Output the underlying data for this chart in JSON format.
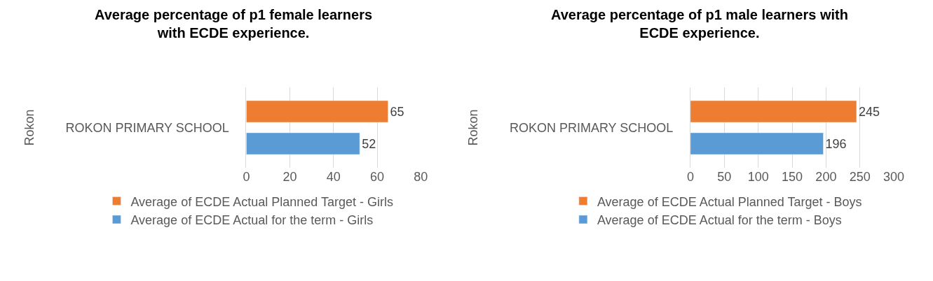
{
  "chart_data": [
    {
      "type": "bar",
      "orientation": "horizontal",
      "title": "Average percentage of p1 female learners with ECDE experience.",
      "ylabel": "Rokon",
      "categories": [
        "ROKON PRIMARY SCHOOL"
      ],
      "series": [
        {
          "name": "Average of ECDE Actual Planned Target - Girls",
          "color": "#ed7d31",
          "values": [
            65
          ]
        },
        {
          "name": "Average of ECDE Actual for the term - Girls",
          "color": "#5b9bd5",
          "values": [
            52
          ]
        }
      ],
      "xlim": [
        0,
        80
      ],
      "xticks": [
        0,
        20,
        40,
        60,
        80
      ],
      "grid": "x",
      "legend": "bottom",
      "data_labels": true
    },
    {
      "type": "bar",
      "orientation": "horizontal",
      "title": "Average percentage of p1 male learners with ECDE experience.",
      "ylabel": "Rokon",
      "categories": [
        "ROKON PRIMARY SCHOOL"
      ],
      "series": [
        {
          "name": "Average of ECDE Actual Planned Target - Boys",
          "color": "#ed7d31",
          "values": [
            245
          ]
        },
        {
          "name": "Average of ECDE Actual for the term - Boys",
          "color": "#5b9bd5",
          "values": [
            196
          ]
        }
      ],
      "xlim": [
        0,
        300
      ],
      "xticks": [
        0,
        50,
        100,
        150,
        200,
        250,
        300
      ],
      "grid": "x",
      "legend": "bottom",
      "data_labels": true
    }
  ]
}
